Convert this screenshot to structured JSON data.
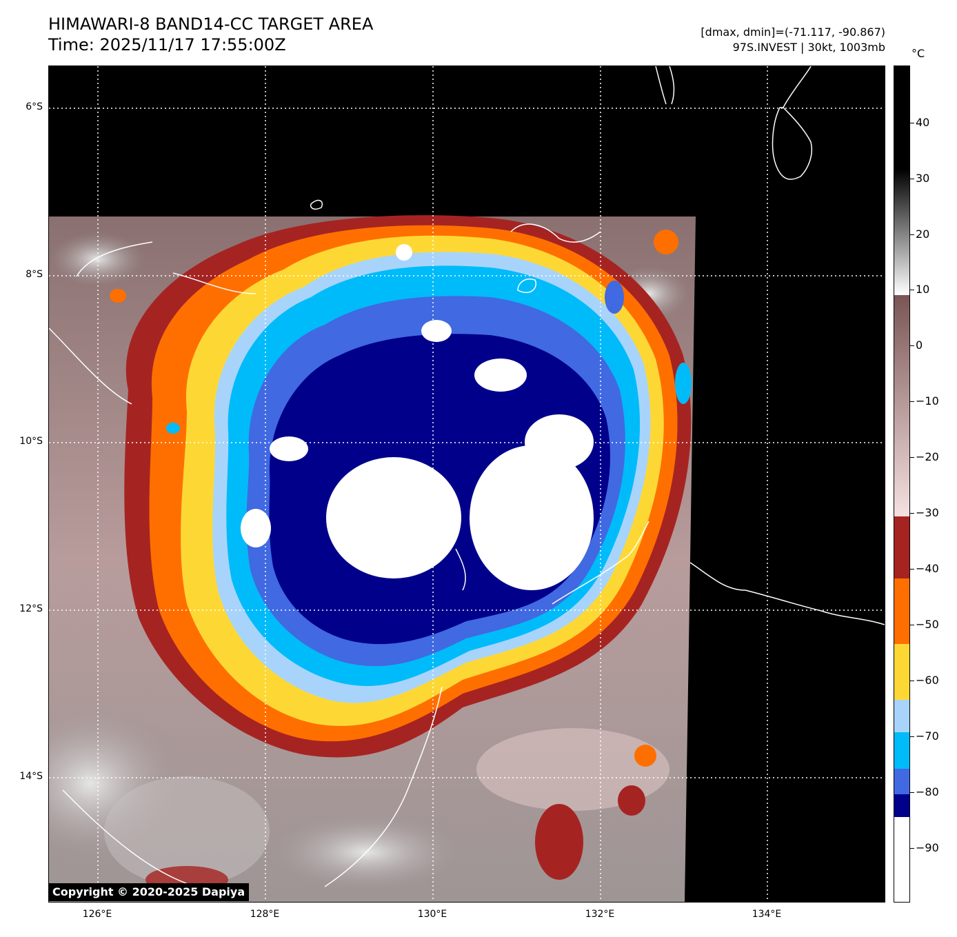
{
  "title": {
    "line1": "HIMAWARI-8 BAND14-CC TARGET AREA",
    "line2": "Time: 2025/11/17 17:55:00Z"
  },
  "info": {
    "line1": "[dmax, dmin]=(-71.117, -90.867)",
    "line2": "97S.INVEST | 30kt, 1003mb"
  },
  "colorbar": {
    "unit": "°C",
    "ticks": [
      "40",
      "30",
      "20",
      "10",
      "0",
      "−10",
      "−20",
      "−30",
      "−40",
      "−50",
      "−60",
      "−70",
      "−80",
      "−90"
    ],
    "colors": {
      "above_10": "#000000",
      "band_10": "#ffffff",
      "band_0": "#7a5555",
      "band_m30": "#f5e1e1",
      "band_m40": "#a52422",
      "band_m50": "#ff6f00",
      "band_m60": "#fdd835",
      "band_m65": "#a8d4fb",
      "band_m70": "#00bbf9",
      "band_m75": "#4169e1",
      "band_m80": "#00008b",
      "band_m85": "#ffffff"
    }
  },
  "axes": {
    "lat_labels": [
      "6°S",
      "8°S",
      "10°S",
      "12°S",
      "14°S"
    ],
    "lon_labels": [
      "126°E",
      "128°E",
      "130°E",
      "132°E",
      "134°E"
    ]
  },
  "copyright": "Copyright © 2020-2025 Dapiya"
}
